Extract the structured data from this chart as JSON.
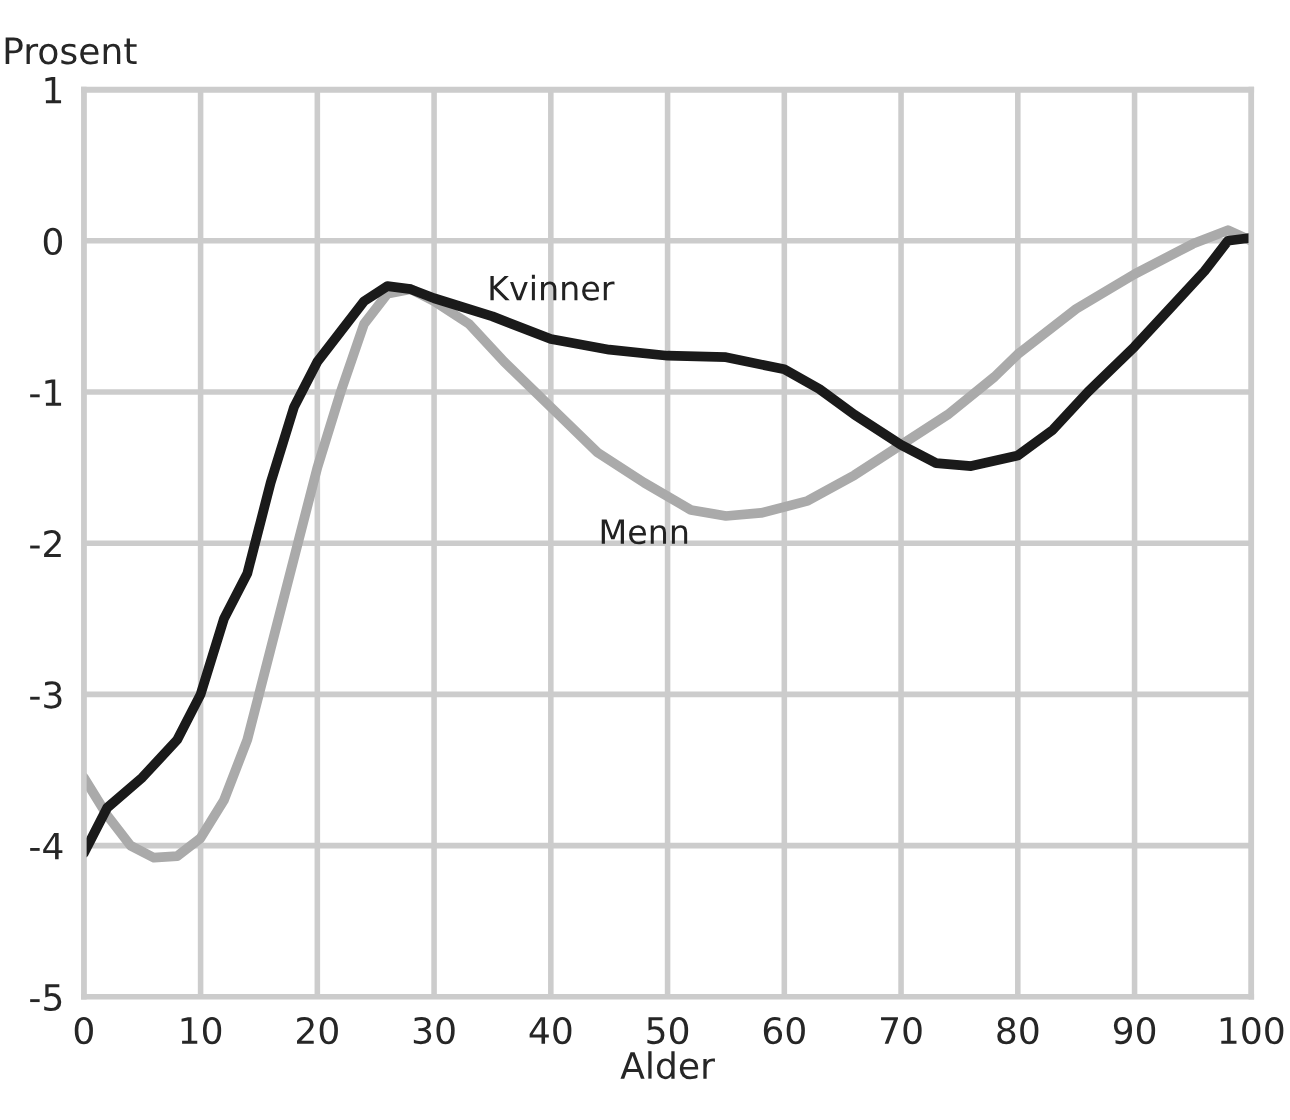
{
  "chart_data": {
    "type": "line",
    "xlabel": "Alder",
    "ylabel": "Prosent",
    "xlim": [
      0,
      100
    ],
    "xticks": [
      0,
      10,
      20,
      30,
      40,
      50,
      60,
      70,
      80,
      90,
      100
    ],
    "ylim": [
      -5,
      1
    ],
    "yticks": [
      -5,
      -4,
      -3,
      -2,
      -1,
      0,
      1
    ],
    "grid": true,
    "legend": false,
    "series": [
      {
        "name": "Menn",
        "color": "#aaaaaa",
        "x": [
          0,
          2,
          4,
          6,
          8,
          10,
          12,
          14,
          16,
          18,
          20,
          22,
          24,
          26,
          28,
          30,
          33,
          36,
          40,
          44,
          48,
          52,
          55,
          58,
          62,
          66,
          70,
          74,
          78,
          80,
          85,
          90,
          95,
          98,
          100
        ],
        "values": [
          -3.55,
          -3.8,
          -4.0,
          -4.08,
          -4.07,
          -3.95,
          -3.7,
          -3.3,
          -2.7,
          -2.1,
          -1.5,
          -1.0,
          -0.55,
          -0.35,
          -0.32,
          -0.4,
          -0.55,
          -0.8,
          -1.1,
          -1.4,
          -1.6,
          -1.78,
          -1.82,
          -1.8,
          -1.72,
          -1.55,
          -1.35,
          -1.15,
          -0.9,
          -0.75,
          -0.45,
          -0.22,
          -0.02,
          0.07,
          0.0
        ]
      },
      {
        "name": "Kvinner",
        "color": "#1a1a1a",
        "x": [
          0,
          2,
          5,
          8,
          10,
          12,
          14,
          16,
          18,
          20,
          22,
          24,
          26,
          28,
          30,
          35,
          40,
          45,
          50,
          55,
          60,
          63,
          66,
          70,
          73,
          76,
          80,
          83,
          86,
          90,
          93,
          96,
          98,
          100
        ],
        "values": [
          -4.05,
          -3.75,
          -3.55,
          -3.3,
          -3.0,
          -2.5,
          -2.2,
          -1.6,
          -1.1,
          -0.8,
          -0.6,
          -0.4,
          -0.3,
          -0.32,
          -0.38,
          -0.5,
          -0.65,
          -0.72,
          -0.76,
          -0.77,
          -0.85,
          -0.98,
          -1.15,
          -1.35,
          -1.47,
          -1.49,
          -1.42,
          -1.25,
          -1.0,
          -0.7,
          -0.45,
          -0.2,
          0.0,
          0.02
        ]
      }
    ]
  }
}
